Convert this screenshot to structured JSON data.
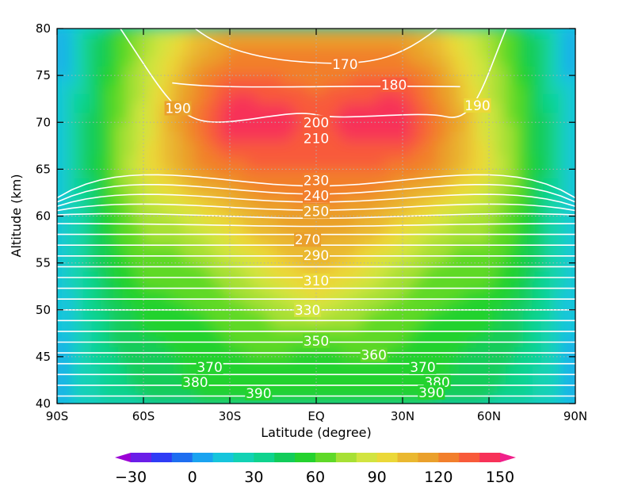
{
  "chart_data": {
    "type": "heatmap",
    "title": "",
    "xlabel": "Latitude (degree)",
    "ylabel": "Altitude (km)",
    "xlim": [
      -90,
      90
    ],
    "ylim": [
      40,
      80
    ],
    "x_ticks": [
      {
        "value": -90,
        "label": "90S"
      },
      {
        "value": -60,
        "label": "60S"
      },
      {
        "value": -30,
        "label": "30S"
      },
      {
        "value": 0,
        "label": "EQ"
      },
      {
        "value": 30,
        "label": "30N"
      },
      {
        "value": 60,
        "label": "60N"
      },
      {
        "value": 90,
        "label": "90N"
      }
    ],
    "y_ticks": [
      40,
      45,
      50,
      55,
      60,
      65,
      70,
      75,
      80
    ],
    "grid": "dotted at ticks",
    "filled_field": {
      "colorbar_levels": [
        -40,
        -30,
        -20,
        -10,
        0,
        10,
        20,
        30,
        40,
        50,
        60,
        70,
        80,
        90,
        100,
        110,
        120,
        130,
        140,
        150,
        160
      ],
      "colorbar_ticks": [
        -30,
        0,
        30,
        60,
        90,
        120,
        150
      ],
      "colorbar_extend": "both",
      "colors": [
        "#9b00d6",
        "#6a1ee8",
        "#2f3cf5",
        "#1e6ef0",
        "#1aa3f0",
        "#16c5dc",
        "#12d2b4",
        "#0fd38e",
        "#12cc5a",
        "#24d22e",
        "#5fd928",
        "#a7e035",
        "#d2e440",
        "#ebd838",
        "#eab830",
        "#eaa02c",
        "#f27f2c",
        "#f85a3a",
        "#f73258",
        "#f0208a"
      ],
      "grid_lat": [
        -90,
        -80,
        -70,
        -60,
        -50,
        -40,
        -30,
        -20,
        -10,
        0,
        10,
        20,
        30,
        40,
        50,
        60,
        70,
        80,
        90
      ],
      "grid_alt": [
        80,
        75,
        70,
        65,
        60,
        55,
        50,
        45,
        40
      ],
      "values": [
        [
          5,
          30,
          55,
          75,
          85,
          100,
          110,
          115,
          115,
          115,
          115,
          115,
          110,
          100,
          85,
          75,
          55,
          30,
          5
        ],
        [
          5,
          35,
          60,
          80,
          100,
          120,
          130,
          130,
          128,
          125,
          128,
          130,
          130,
          120,
          100,
          80,
          60,
          35,
          5
        ],
        [
          10,
          40,
          65,
          85,
          110,
          130,
          150,
          150,
          145,
          135,
          145,
          150,
          150,
          130,
          110,
          85,
          65,
          40,
          10
        ],
        [
          10,
          40,
          70,
          90,
          105,
          120,
          125,
          130,
          130,
          130,
          130,
          130,
          125,
          120,
          105,
          90,
          70,
          40,
          10
        ],
        [
          10,
          35,
          60,
          75,
          80,
          90,
          100,
          110,
          115,
          118,
          115,
          110,
          100,
          90,
          80,
          75,
          60,
          35,
          10
        ],
        [
          10,
          35,
          55,
          65,
          65,
          70,
          80,
          90,
          100,
          105,
          100,
          90,
          80,
          70,
          65,
          65,
          55,
          35,
          10
        ],
        [
          10,
          30,
          45,
          55,
          58,
          60,
          65,
          70,
          78,
          85,
          78,
          70,
          65,
          60,
          58,
          55,
          45,
          30,
          10
        ],
        [
          5,
          25,
          40,
          45,
          50,
          55,
          58,
          60,
          58,
          55,
          58,
          60,
          58,
          55,
          50,
          45,
          40,
          25,
          5
        ],
        [
          5,
          25,
          35,
          40,
          45,
          50,
          55,
          55,
          55,
          55,
          55,
          55,
          55,
          50,
          45,
          40,
          35,
          25,
          5
        ]
      ]
    },
    "contour_labels": [
      {
        "text": "170",
        "lat": 10,
        "alt": 76.2
      },
      {
        "text": "180",
        "lat": 27,
        "alt": 74.0
      },
      {
        "text": "190",
        "lat": -48,
        "alt": 71.5
      },
      {
        "text": "190",
        "lat": 56,
        "alt": 71.8
      },
      {
        "text": "200",
        "lat": 0,
        "alt": 70.0
      },
      {
        "text": "210",
        "lat": 0,
        "alt": 68.3
      },
      {
        "text": "230",
        "lat": 0,
        "alt": 63.8
      },
      {
        "text": "240",
        "lat": 0,
        "alt": 62.2
      },
      {
        "text": "250",
        "lat": 0,
        "alt": 60.5
      },
      {
        "text": "270",
        "lat": -3,
        "alt": 57.5
      },
      {
        "text": "290",
        "lat": 0,
        "alt": 55.8
      },
      {
        "text": "310",
        "lat": 0,
        "alt": 53.1
      },
      {
        "text": "330",
        "lat": -3,
        "alt": 50.0
      },
      {
        "text": "350",
        "lat": 0,
        "alt": 46.7
      },
      {
        "text": "360",
        "lat": 20,
        "alt": 45.2
      },
      {
        "text": "370",
        "lat": -37,
        "alt": 43.9
      },
      {
        "text": "370",
        "lat": 37,
        "alt": 43.9
      },
      {
        "text": "380",
        "lat": -42,
        "alt": 42.3
      },
      {
        "text": "380",
        "lat": 42,
        "alt": 42.3
      },
      {
        "text": "390",
        "lat": -20,
        "alt": 41.1
      },
      {
        "text": "390",
        "lat": 40,
        "alt": 41.2
      }
    ],
    "colors": {
      "contour_lines": "#ffffff",
      "grid": "#b0b0b0"
    }
  }
}
